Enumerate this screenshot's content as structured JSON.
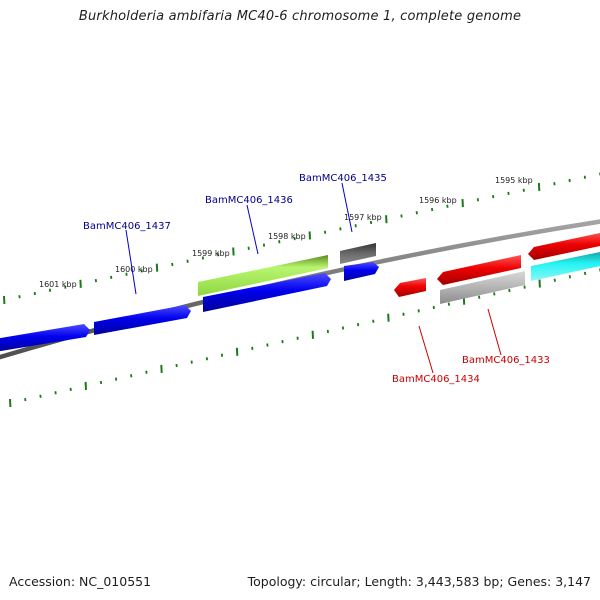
{
  "title": "Burkholderia ambifaria MC40-6 chromosome 1, complete genome",
  "footer": {
    "accession": "Accession: NC_010551",
    "topology": "Topology: circular; Length: 3,443,583 bp; Genes: 3,147"
  },
  "colors": {
    "forward_gene": "#0000ee",
    "reverse_gene": "#ee0000",
    "highlight_gene": "#99ee33",
    "dark_gene": "#555555",
    "gray_gene": "#aaaaaa",
    "cyan_gene": "#00dddd",
    "backbone": "#6e6e6e",
    "tick": "#1a7a1a",
    "forward_label": "#00008b",
    "reverse_label": "#cc0000"
  },
  "scale_labels": [
    "1595 kbp",
    "1596 kbp",
    "1597 kbp",
    "1598 kbp",
    "1599 kbp",
    "1600 kbp",
    "1601 kbp"
  ],
  "genes": [
    {
      "locus": "BamMC406_1437",
      "strand": "forward",
      "color": "forward_gene",
      "labeled": true
    },
    {
      "locus": "BamMC406_1436",
      "strand": "forward",
      "color": "forward_gene",
      "labeled": true
    },
    {
      "locus": "BamMC406_1435",
      "strand": "forward",
      "color": "forward_gene",
      "labeled": true
    },
    {
      "locus": "BamMC406_1434",
      "strand": "reverse",
      "color": "reverse_gene",
      "labeled": true
    },
    {
      "locus": "BamMC406_1433",
      "strand": "reverse",
      "color": "reverse_gene",
      "labeled": true
    }
  ]
}
